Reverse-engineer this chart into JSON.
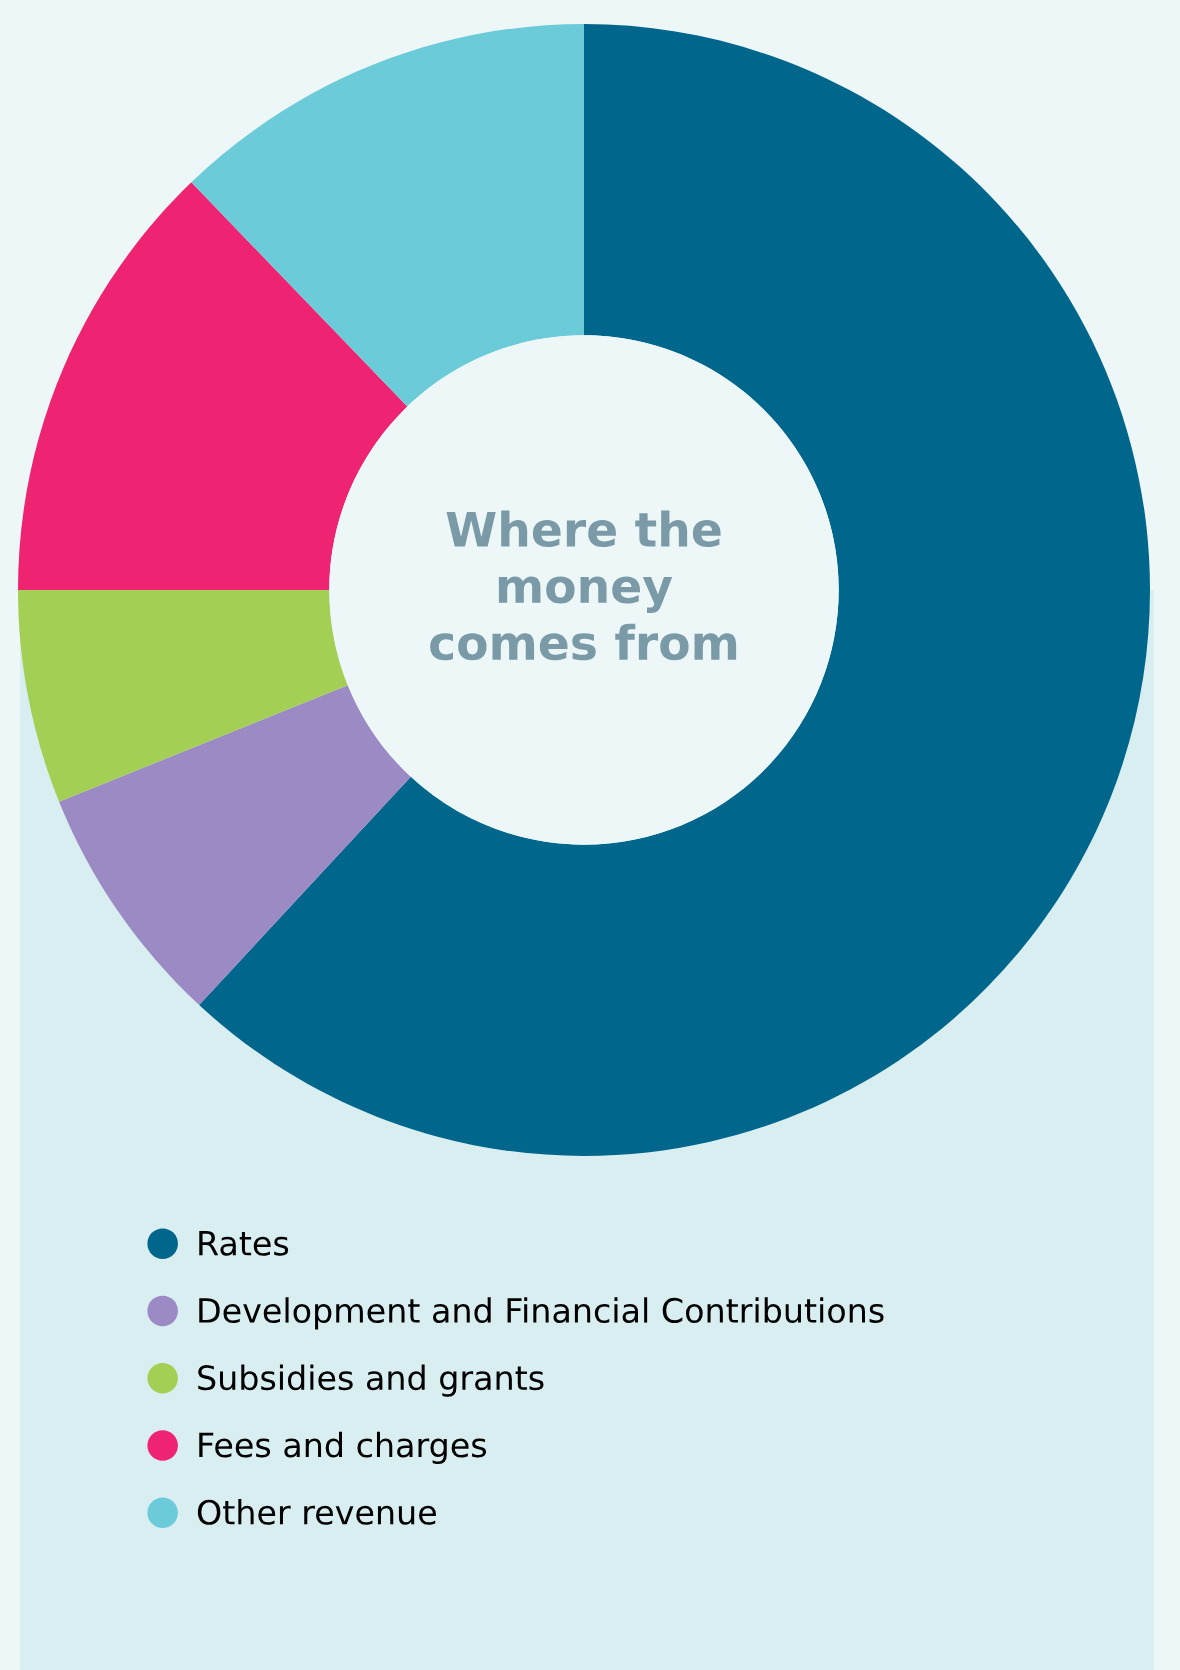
{
  "chart_data": {
    "type": "donut",
    "title": "Where the\nmoney\ncomes from",
    "categories": [
      "Rates",
      "Development and Financial Contributions",
      "Subsidies and grants",
      "Fees and charges",
      "Other revenue"
    ],
    "values": [
      61.9,
      7.0,
      6.1,
      12.8,
      12.2
    ],
    "colors": [
      "#00668c",
      "#9b8ac4",
      "#a4cf55",
      "#ee2473",
      "#6ccbd8"
    ],
    "legend": "bottom"
  }
}
